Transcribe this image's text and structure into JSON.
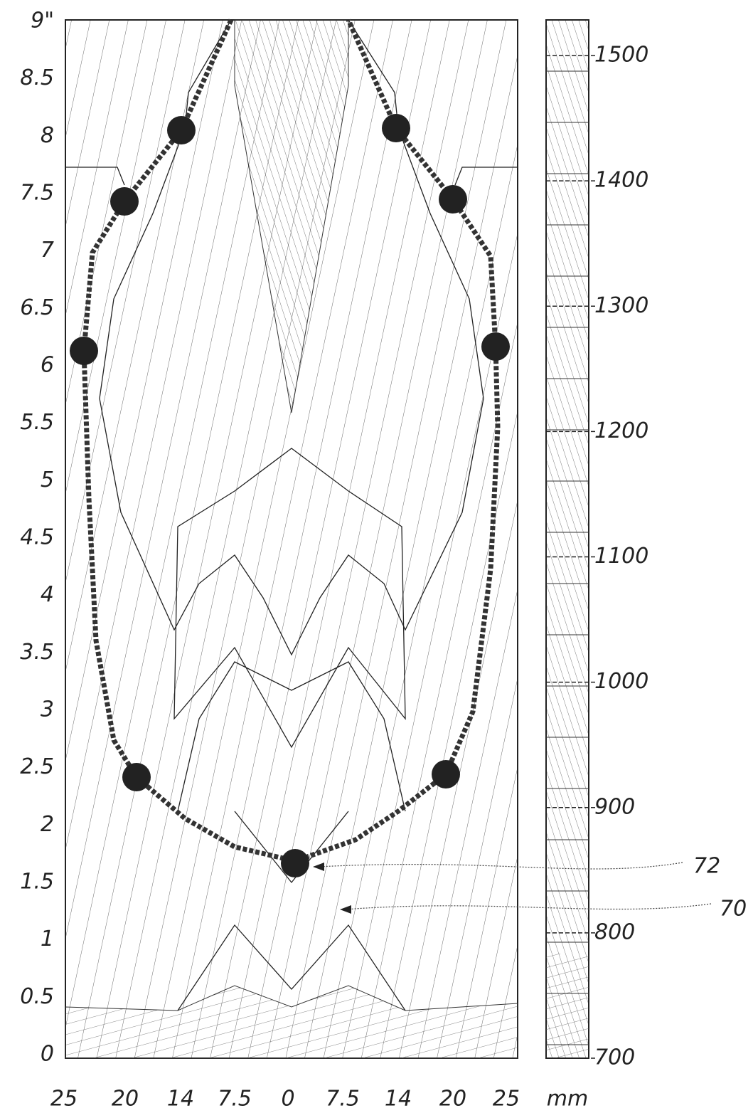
{
  "figure": {
    "y_axis_labels": [
      "0",
      "0.5",
      "1",
      "1.5",
      "2",
      "2.5",
      "3",
      "3.5",
      "4",
      "4.5",
      "5",
      "5.5",
      "6",
      "6.5",
      "7",
      "7.5",
      "8",
      "8.5",
      "9\""
    ],
    "x_axis_labels": [
      "25",
      "20",
      "14",
      "7.5",
      "0",
      "7.5",
      "14",
      "20",
      "25"
    ],
    "x_axis_unit": "mm",
    "scale_labels": [
      "700",
      "800",
      "900",
      "1000",
      "1100",
      "1200",
      "1300",
      "1400",
      "1500"
    ],
    "callouts": [
      "72",
      "70"
    ]
  }
}
